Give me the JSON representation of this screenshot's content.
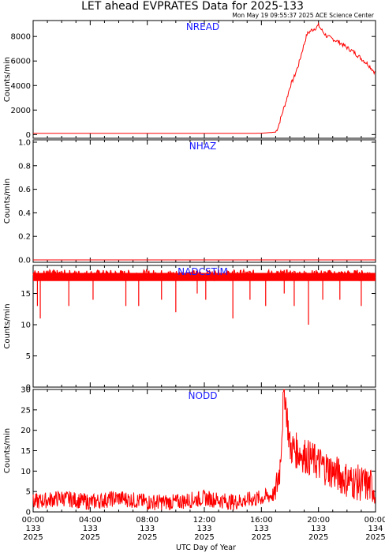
{
  "header": {
    "title": "LET ahead EVPRATES Data for 2025-133",
    "timestamp": "Mon May 19 09:55:37 2025 ACE Science Center"
  },
  "colors": {
    "series": "#ff0000",
    "label": "#1a1aff",
    "axis": "#000000"
  },
  "x_axis": {
    "label": "UTC Day of Year",
    "ticks": [
      {
        "time": "00:00",
        "doy": "133",
        "year": "2025"
      },
      {
        "time": "04:00",
        "doy": "133",
        "year": "2025"
      },
      {
        "time": "08:00",
        "doy": "133",
        "year": "2025"
      },
      {
        "time": "12:00",
        "doy": "133",
        "year": "2025"
      },
      {
        "time": "16:00",
        "doy": "133",
        "year": "2025"
      },
      {
        "time": "20:00",
        "doy": "133",
        "year": "2025"
      },
      {
        "time": "00:00",
        "doy": "134",
        "year": "2025"
      }
    ]
  },
  "chart_data": [
    {
      "type": "line",
      "label": "NREAD",
      "ylabel": "Counts/min",
      "ylim": [
        -300,
        9300
      ],
      "yticks": [
        0,
        2000,
        4000,
        6000,
        8000
      ],
      "xlim_hours": [
        0,
        24
      ],
      "series": [
        {
          "x": [
            0,
            4,
            8,
            12,
            16,
            17.0,
            17.2,
            17.5,
            17.8,
            18.0,
            18.3,
            18.6,
            18.9,
            19.2,
            19.5,
            19.8,
            20.0,
            20.3,
            20.6,
            21.0,
            21.5,
            22.0,
            22.5,
            23.0,
            23.5,
            24.0
          ],
          "values": [
            100,
            100,
            100,
            100,
            110,
            200,
            700,
            1900,
            3000,
            3900,
            4700,
            5700,
            7000,
            8200,
            8500,
            8700,
            8900,
            8400,
            8000,
            7800,
            7500,
            7100,
            6700,
            6200,
            5700,
            5000
          ]
        }
      ]
    },
    {
      "type": "line",
      "label": "NHAZ",
      "ylabel": "Counts/min",
      "ylim": [
        -0.02,
        1.02
      ],
      "yticks": [
        0.0,
        0.2,
        0.4,
        0.6,
        0.8,
        1.0
      ],
      "xlim_hours": [
        0,
        24
      ],
      "series": [
        {
          "x": [
            0,
            24
          ],
          "values": [
            0,
            0
          ]
        }
      ]
    },
    {
      "type": "line",
      "label": "NADCSTIM",
      "ylabel": "Counts/min",
      "ylim": [
        0,
        19.5
      ],
      "yticks": [
        0,
        5,
        10,
        15
      ],
      "xlim_hours": [
        0,
        24
      ],
      "series": [
        {
          "x": [
            0,
            24
          ],
          "values": [
            18,
            18
          ]
        }
      ],
      "dropouts": [
        [
          0.5,
          11
        ],
        [
          0.3,
          13
        ],
        [
          2.5,
          13
        ],
        [
          4.2,
          14
        ],
        [
          6.5,
          13
        ],
        [
          7.4,
          13
        ],
        [
          9.0,
          14
        ],
        [
          10.0,
          12
        ],
        [
          11.5,
          15
        ],
        [
          12.1,
          14
        ],
        [
          14.0,
          11
        ],
        [
          15.2,
          14
        ],
        [
          16.3,
          13
        ],
        [
          17.6,
          15
        ],
        [
          18.3,
          13
        ],
        [
          19.3,
          10
        ],
        [
          20.3,
          14
        ],
        [
          21.5,
          14
        ],
        [
          23.0,
          13
        ]
      ]
    },
    {
      "type": "line",
      "label": "NODD",
      "ylabel": "Counts/min",
      "ylim": [
        0,
        30
      ],
      "yticks": [
        0,
        5,
        10,
        15,
        20,
        25,
        30
      ],
      "xlim_hours": [
        0,
        24
      ],
      "series": [
        {
          "x": [
            0,
            2,
            4,
            6,
            8,
            10,
            12,
            14,
            16,
            17.0,
            17.3,
            17.6,
            18.0,
            18.5,
            19.0,
            19.5,
            20.0,
            20.5,
            21.0,
            22.0,
            23.0,
            24.0
          ],
          "values": [
            2,
            3,
            2,
            3,
            2,
            2,
            3,
            2,
            3,
            4,
            10,
            30,
            15,
            14,
            13,
            12,
            11,
            10,
            9,
            7,
            6,
            5
          ]
        }
      ]
    }
  ]
}
